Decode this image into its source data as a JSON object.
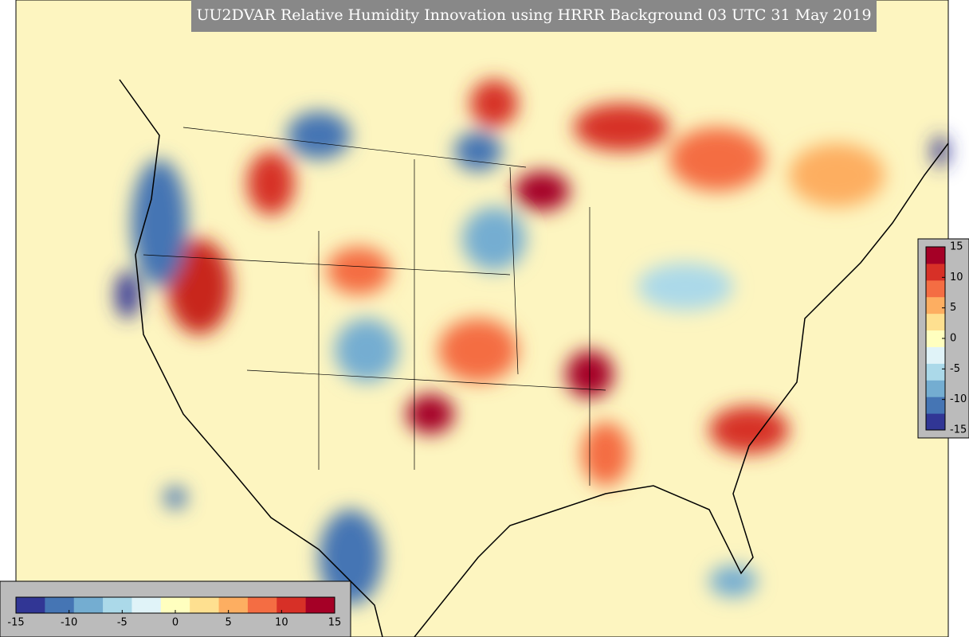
{
  "title": "UU2DVAR Relative Humidity Innovation using HRRR Background 03 UTC 31 May 2019",
  "colorbar": {
    "lim": [
      -15,
      15
    ],
    "ticks": [
      -15,
      -10,
      -5,
      0,
      5,
      10,
      15
    ],
    "colors": [
      "#313695",
      "#4575b4",
      "#74add1",
      "#abd9e9",
      "#e0f3f8",
      "#ffffbf",
      "#fee090",
      "#fdae61",
      "#f46d43",
      "#d73027",
      "#a50026"
    ]
  }
}
